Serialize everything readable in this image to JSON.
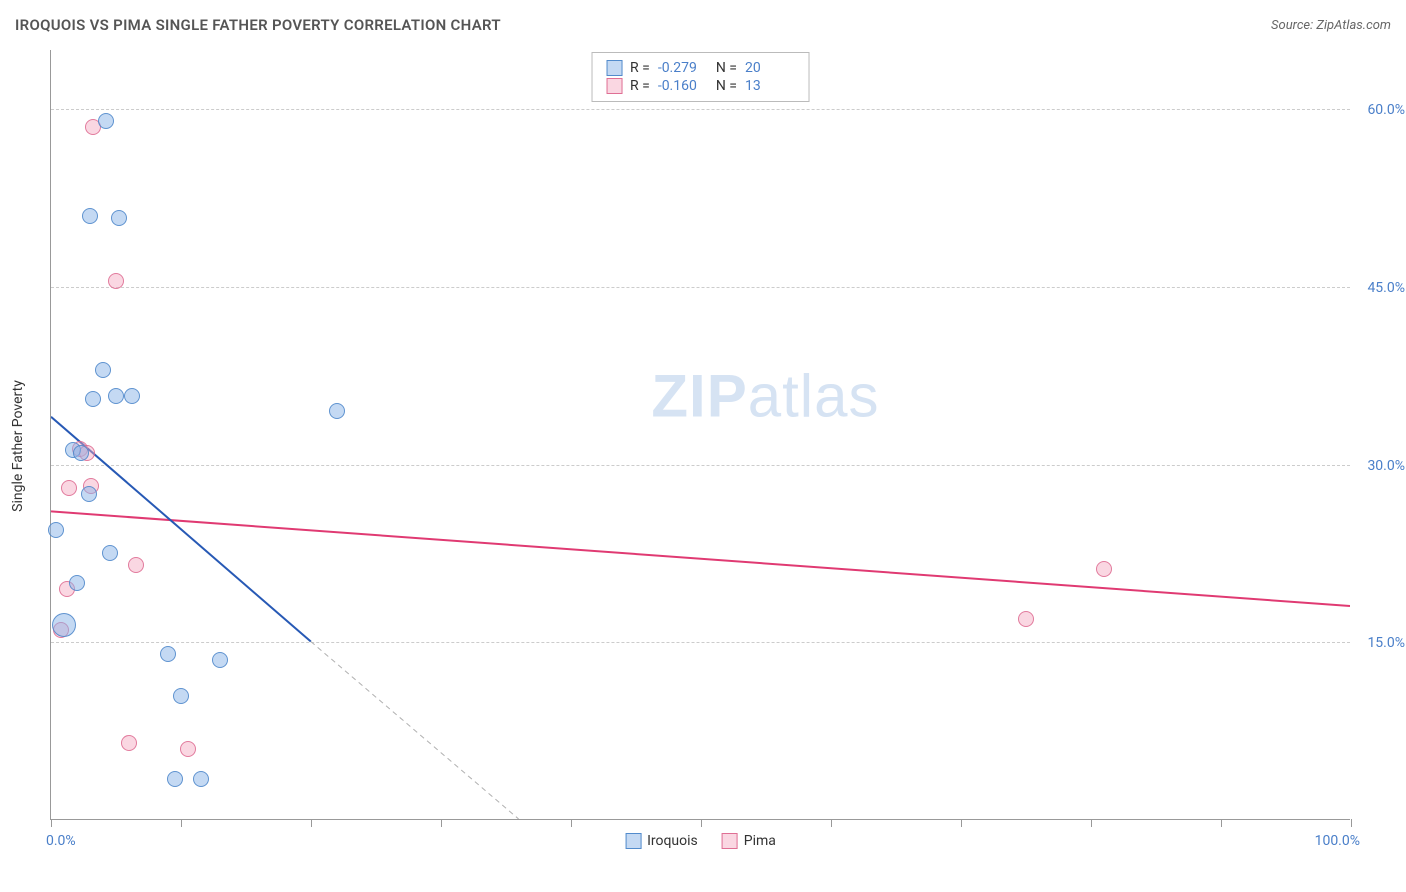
{
  "header": {
    "title": "IROQUOIS VS PIMA SINGLE FATHER POVERTY CORRELATION CHART",
    "source": "Source: ZipAtlas.com"
  },
  "watermark": {
    "zip": "ZIP",
    "atlas": "atlas"
  },
  "chart": {
    "type": "scatter",
    "y_axis_title": "Single Father Poverty",
    "background_color": "#ffffff",
    "grid_color": "#cccccc",
    "axis_color": "#999999",
    "tick_label_color": "#4a7fc9",
    "xlim": [
      0,
      100
    ],
    "ylim": [
      0,
      65
    ],
    "x_ticks_labeled": [
      {
        "x": 0,
        "label": "0.0%"
      },
      {
        "x": 100,
        "label": "100.0%"
      }
    ],
    "x_ticks_minor": [
      10,
      20,
      30,
      40,
      50,
      60,
      70,
      80,
      90
    ],
    "y_gridlines": [
      {
        "y": 15,
        "label": "15.0%"
      },
      {
        "y": 30,
        "label": "30.0%"
      },
      {
        "y": 45,
        "label": "45.0%"
      },
      {
        "y": 60,
        "label": "60.0%"
      }
    ],
    "marker_radius": 8,
    "series": {
      "iroquois": {
        "label": "Iroquois",
        "color_fill": "#89b4e8",
        "color_stroke": "#4682c8",
        "fill_opacity": 0.5,
        "R": "-0.279",
        "N": "20",
        "trend": {
          "x1": 0,
          "y1": 34,
          "x2": 20,
          "y2": 15,
          "color": "#2759b5",
          "width": 2
        },
        "trend_ext": {
          "x1": 20,
          "y1": 15,
          "x2": 36,
          "y2": 0,
          "color": "#b0b0b0",
          "width": 1,
          "dash": "5,4"
        },
        "points": [
          {
            "x": 4.2,
            "y": 59.0
          },
          {
            "x": 3.0,
            "y": 51.0
          },
          {
            "x": 5.2,
            "y": 50.8
          },
          {
            "x": 4.0,
            "y": 38.0
          },
          {
            "x": 3.2,
            "y": 35.5
          },
          {
            "x": 5.0,
            "y": 35.8
          },
          {
            "x": 6.2,
            "y": 35.8
          },
          {
            "x": 22.0,
            "y": 34.5
          },
          {
            "x": 1.7,
            "y": 31.2
          },
          {
            "x": 2.3,
            "y": 31.0
          },
          {
            "x": 2.9,
            "y": 27.5
          },
          {
            "x": 0.4,
            "y": 24.5
          },
          {
            "x": 4.5,
            "y": 22.5
          },
          {
            "x": 2.0,
            "y": 20.0
          },
          {
            "x": 1.0,
            "y": 16.5,
            "r": 12
          },
          {
            "x": 9.0,
            "y": 14.0
          },
          {
            "x": 13.0,
            "y": 13.5
          },
          {
            "x": 10.0,
            "y": 10.5
          },
          {
            "x": 9.5,
            "y": 3.5
          },
          {
            "x": 11.5,
            "y": 3.5
          }
        ]
      },
      "pima": {
        "label": "Pima",
        "color_fill": "#f4a6be",
        "color_stroke": "#dc648c",
        "fill_opacity": 0.45,
        "R": "-0.160",
        "N": "13",
        "trend": {
          "x1": 0,
          "y1": 26,
          "x2": 100,
          "y2": 18,
          "color": "#e03a72",
          "width": 2
        },
        "points": [
          {
            "x": 3.2,
            "y": 58.5
          },
          {
            "x": 5.0,
            "y": 45.5
          },
          {
            "x": 2.2,
            "y": 31.3
          },
          {
            "x": 2.8,
            "y": 31.0
          },
          {
            "x": 1.4,
            "y": 28.0
          },
          {
            "x": 3.1,
            "y": 28.2
          },
          {
            "x": 81.0,
            "y": 21.2
          },
          {
            "x": 6.5,
            "y": 21.5
          },
          {
            "x": 1.2,
            "y": 19.5
          },
          {
            "x": 75.0,
            "y": 17.0
          },
          {
            "x": 0.8,
            "y": 16.0
          },
          {
            "x": 6.0,
            "y": 6.5
          },
          {
            "x": 10.5,
            "y": 6.0
          }
        ]
      }
    },
    "legend_stats": {
      "r_label": "R =",
      "n_label": "N ="
    }
  }
}
